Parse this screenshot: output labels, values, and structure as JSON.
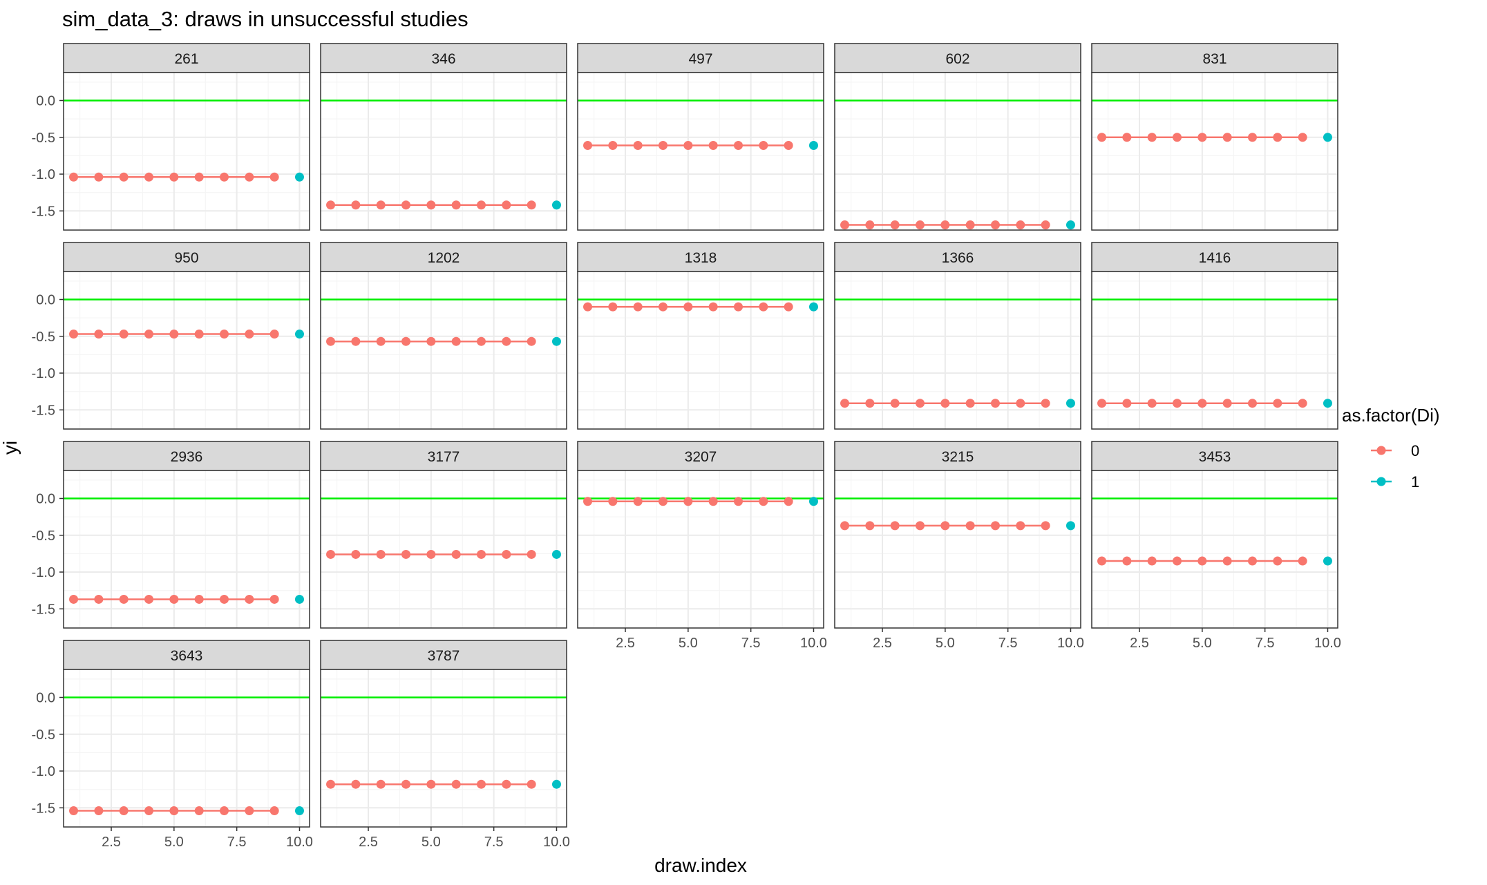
{
  "chart_data": {
    "type": "line",
    "title": "sim_data_3: draws in unsuccessful studies",
    "xlabel": "draw.index",
    "ylabel": "yi",
    "xlim": [
      0.6,
      10.4
    ],
    "ylim": [
      -1.76,
      0.38
    ],
    "x_ticks": [
      "2.5",
      "5.0",
      "7.5",
      "10.0"
    ],
    "x_tick_values": [
      2.5,
      5.0,
      7.5,
      10.0
    ],
    "y_ticks": [
      "0.0",
      "-0.5",
      "-1.0",
      "-1.5"
    ],
    "y_tick_values": [
      0.0,
      -0.5,
      -1.0,
      -1.5
    ],
    "reference_line": {
      "y": 0.0,
      "color": "#00ee00"
    },
    "grid": true,
    "legend": {
      "title": "as.factor(Di)",
      "placement": "right",
      "entries": [
        {
          "label": "0",
          "color": "#F8766D"
        },
        {
          "label": "1",
          "color": "#00BFC4"
        }
      ]
    },
    "x": [
      1,
      2,
      3,
      4,
      5,
      6,
      7,
      8,
      9,
      10
    ],
    "di": [
      0,
      0,
      0,
      0,
      0,
      0,
      0,
      0,
      0,
      1
    ],
    "facets": [
      {
        "label": "261",
        "y": -1.04
      },
      {
        "label": "346",
        "y": -1.42
      },
      {
        "label": "497",
        "y": -0.61
      },
      {
        "label": "602",
        "y": -1.69
      },
      {
        "label": "831",
        "y": -0.5
      },
      {
        "label": "950",
        "y": -0.47
      },
      {
        "label": "1202",
        "y": -0.57
      },
      {
        "label": "1318",
        "y": -0.1
      },
      {
        "label": "1366",
        "y": -1.41
      },
      {
        "label": "1416",
        "y": -1.41
      },
      {
        "label": "2936",
        "y": -1.37
      },
      {
        "label": "3177",
        "y": -0.76
      },
      {
        "label": "3207",
        "y": -0.04
      },
      {
        "label": "3215",
        "y": -0.37
      },
      {
        "label": "3453",
        "y": -0.85
      },
      {
        "label": "3643",
        "y": -1.54
      },
      {
        "label": "3787",
        "y": -1.18
      }
    ]
  }
}
